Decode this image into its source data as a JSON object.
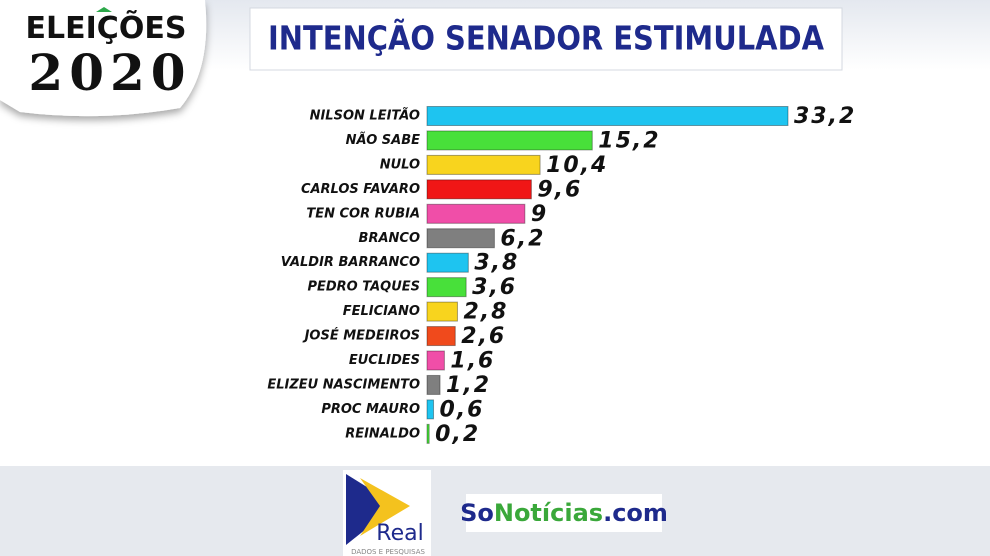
{
  "header": {
    "badge_top": "ELEIÇÕES",
    "badge_year": "2020",
    "title": "INTENÇÃO SENADOR ESTIMULADA"
  },
  "chart_data": {
    "type": "bar",
    "orientation": "horizontal",
    "categories": [
      "NILSON LEITÃO",
      "NÃO SABE",
      "NULO",
      "CARLOS FAVARO",
      "TEN COR RUBIA",
      "BRANCO",
      "VALDIR BARRANCO",
      "PEDRO TAQUES",
      "FELICIANO",
      "JOSÉ MEDEIROS",
      "EUCLIDES",
      "ELIZEU NASCIMENTO",
      "PROC MAURO",
      "REINALDO"
    ],
    "values": [
      33.2,
      15.2,
      10.4,
      9.6,
      9,
      6.2,
      3.8,
      3.6,
      2.8,
      2.6,
      1.6,
      1.2,
      0.6,
      0.2
    ],
    "value_labels": [
      "33,2",
      "15,2",
      "10,4",
      "9,6",
      "9",
      "6,2",
      "3,8",
      "3,6",
      "2,8",
      "2,6",
      "1,6",
      "1,2",
      "0,6",
      "0,2"
    ],
    "colors": [
      "#1ec4f0",
      "#48e03a",
      "#f8d41e",
      "#f01616",
      "#f04ea8",
      "#7f7f7f",
      "#1ec4f0",
      "#48e03a",
      "#f8d41e",
      "#f04a1c",
      "#f04ea8",
      "#7f7f7f",
      "#1ec4f0",
      "#48e03a"
    ]
  },
  "footer": {
    "real_logo": "Real",
    "real_sub": "DADOS E PESQUISAS",
    "site": [
      "So",
      "Notícias",
      ".com"
    ]
  }
}
